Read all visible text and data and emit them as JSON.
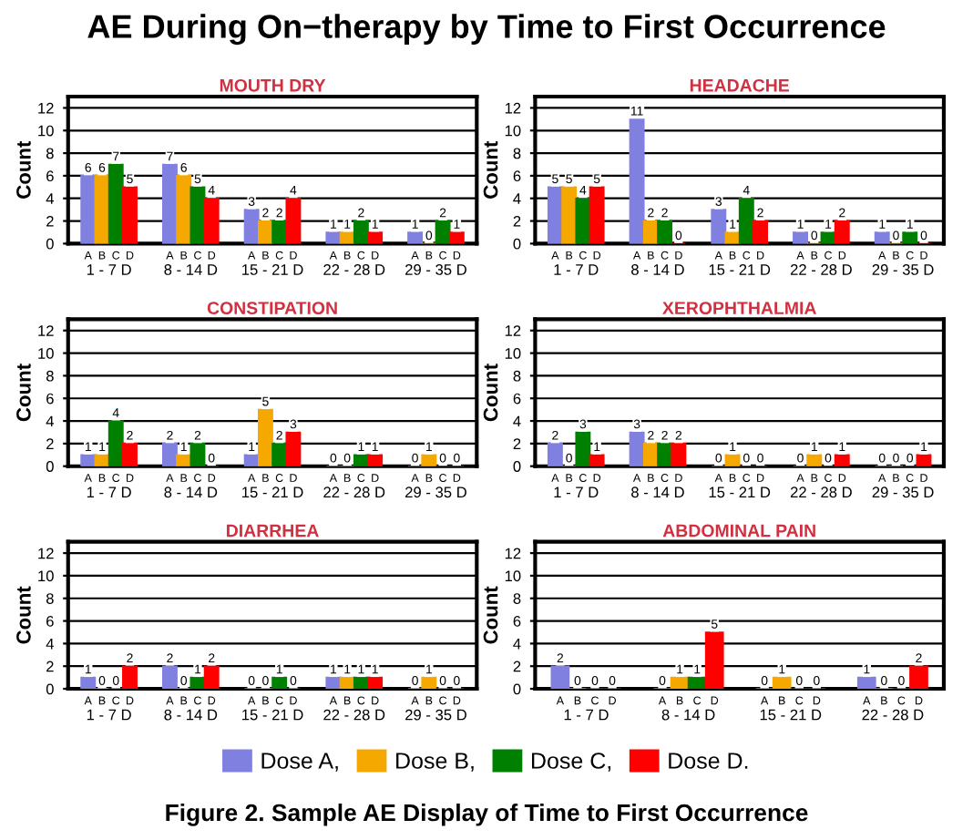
{
  "chart_data": [
    {
      "type": "other",
      "title": "AE During On−therapy by Time to First Occurrence"
    },
    {
      "type": "bar",
      "title": "MOUTH DRY",
      "ylabel": "Count",
      "categories": [
        "1 - 7 D",
        "8 - 14 D",
        "15 - 21 D",
        "22 - 28 D",
        "29 - 35 D"
      ],
      "ylim": [
        0,
        13
      ],
      "yticks": [
        0,
        2,
        4,
        6,
        8,
        10,
        12
      ],
      "grid": "y",
      "data_labels": true,
      "legend": "bottom",
      "annotations": [
        "A",
        "B",
        "C",
        "D"
      ],
      "series": [
        {
          "name": "Dose A,",
          "color": "#8080e0",
          "values": [
            6,
            7,
            3,
            1,
            1
          ]
        },
        {
          "name": "Dose B,",
          "color": "#f5a800",
          "values": [
            6,
            6,
            2,
            1,
            0
          ]
        },
        {
          "name": "Dose C,",
          "color": "#008000",
          "values": [
            7,
            5,
            2,
            2,
            2
          ]
        },
        {
          "name": "Dose D.",
          "color": "#ff0000",
          "values": [
            5,
            4,
            4,
            1,
            1
          ]
        }
      ]
    },
    {
      "type": "bar",
      "title": "HEADACHE",
      "ylabel": "Count",
      "categories": [
        "1 - 7 D",
        "8 - 14 D",
        "15 - 21 D",
        "22 - 28 D",
        "29 - 35 D"
      ],
      "ylim": [
        0,
        13
      ],
      "yticks": [
        0,
        2,
        4,
        6,
        8,
        10,
        12
      ],
      "grid": "y",
      "data_labels": true,
      "annotations": [
        "A",
        "B",
        "C",
        "D"
      ],
      "series": [
        {
          "color": "#8080e0",
          "values": [
            5,
            11,
            3,
            1,
            1
          ]
        },
        {
          "color": "#f5a800",
          "values": [
            5,
            2,
            1,
            0,
            0
          ]
        },
        {
          "color": "#008000",
          "values": [
            4,
            2,
            4,
            1,
            1
          ]
        },
        {
          "color": "#ff0000",
          "values": [
            5,
            0,
            2,
            2,
            0
          ]
        }
      ]
    },
    {
      "type": "bar",
      "title": "CONSTIPATION",
      "ylabel": "Count",
      "categories": [
        "1 - 7 D",
        "8 - 14 D",
        "15 - 21 D",
        "22 - 28 D",
        "29 - 35 D"
      ],
      "ylim": [
        0,
        13
      ],
      "yticks": [
        0,
        2,
        4,
        6,
        8,
        10,
        12
      ],
      "grid": "y",
      "data_labels": true,
      "annotations": [
        "A",
        "B",
        "C",
        "D"
      ],
      "series": [
        {
          "color": "#8080e0",
          "values": [
            1,
            2,
            1,
            0,
            0
          ]
        },
        {
          "color": "#f5a800",
          "values": [
            1,
            1,
            5,
            0,
            1
          ]
        },
        {
          "color": "#008000",
          "values": [
            4,
            2,
            2,
            1,
            0
          ]
        },
        {
          "color": "#ff0000",
          "values": [
            2,
            0,
            3,
            1,
            0
          ]
        }
      ]
    },
    {
      "type": "bar",
      "title": "XEROPHTHALMIA",
      "ylabel": "Count",
      "categories": [
        "1 - 7 D",
        "8 - 14 D",
        "15 - 21 D",
        "22 - 28 D",
        "29 - 35 D"
      ],
      "ylim": [
        0,
        13
      ],
      "yticks": [
        0,
        2,
        4,
        6,
        8,
        10,
        12
      ],
      "grid": "y",
      "data_labels": true,
      "annotations": [
        "A",
        "B",
        "C",
        "D"
      ],
      "series": [
        {
          "color": "#8080e0",
          "values": [
            2,
            3,
            0,
            0,
            0
          ]
        },
        {
          "color": "#f5a800",
          "values": [
            0,
            2,
            1,
            1,
            0
          ]
        },
        {
          "color": "#008000",
          "values": [
            3,
            2,
            0,
            0,
            0
          ]
        },
        {
          "color": "#ff0000",
          "values": [
            1,
            2,
            0,
            1,
            1
          ]
        }
      ]
    },
    {
      "type": "bar",
      "title": "DIARRHEA",
      "ylabel": "Count",
      "categories": [
        "1 - 7 D",
        "8 - 14 D",
        "15 - 21 D",
        "22 - 28 D",
        "29 - 35 D"
      ],
      "ylim": [
        0,
        13
      ],
      "yticks": [
        0,
        2,
        4,
        6,
        8,
        10,
        12
      ],
      "grid": "y",
      "data_labels": true,
      "annotations": [
        "A",
        "B",
        "C",
        "D"
      ],
      "series": [
        {
          "color": "#8080e0",
          "values": [
            1,
            2,
            0,
            1,
            0
          ]
        },
        {
          "color": "#f5a800",
          "values": [
            0,
            0,
            0,
            1,
            1
          ]
        },
        {
          "color": "#008000",
          "values": [
            0,
            1,
            1,
            1,
            0
          ]
        },
        {
          "color": "#ff0000",
          "values": [
            2,
            2,
            0,
            1,
            0
          ]
        }
      ]
    },
    {
      "type": "bar",
      "title": "ABDOMINAL PAIN",
      "ylabel": "Count",
      "categories": [
        "1 - 7 D",
        "8 - 14 D",
        "15 - 21 D",
        "22 - 28 D"
      ],
      "ylim": [
        0,
        13
      ],
      "yticks": [
        0,
        2,
        4,
        6,
        8,
        10,
        12
      ],
      "grid": "y",
      "data_labels": true,
      "annotations": [
        "A",
        "B",
        "C",
        "D"
      ],
      "series": [
        {
          "color": "#8080e0",
          "values": [
            2,
            0,
            0,
            1
          ]
        },
        {
          "color": "#f5a800",
          "values": [
            0,
            1,
            1,
            0
          ]
        },
        {
          "color": "#008000",
          "values": [
            0,
            1,
            0,
            0
          ]
        },
        {
          "color": "#ff0000",
          "values": [
            0,
            5,
            0,
            2
          ]
        }
      ]
    },
    {
      "type": "other",
      "annotations": [
        "Figure 2. Sample AE Display of Time to First Occurrence"
      ]
    }
  ]
}
